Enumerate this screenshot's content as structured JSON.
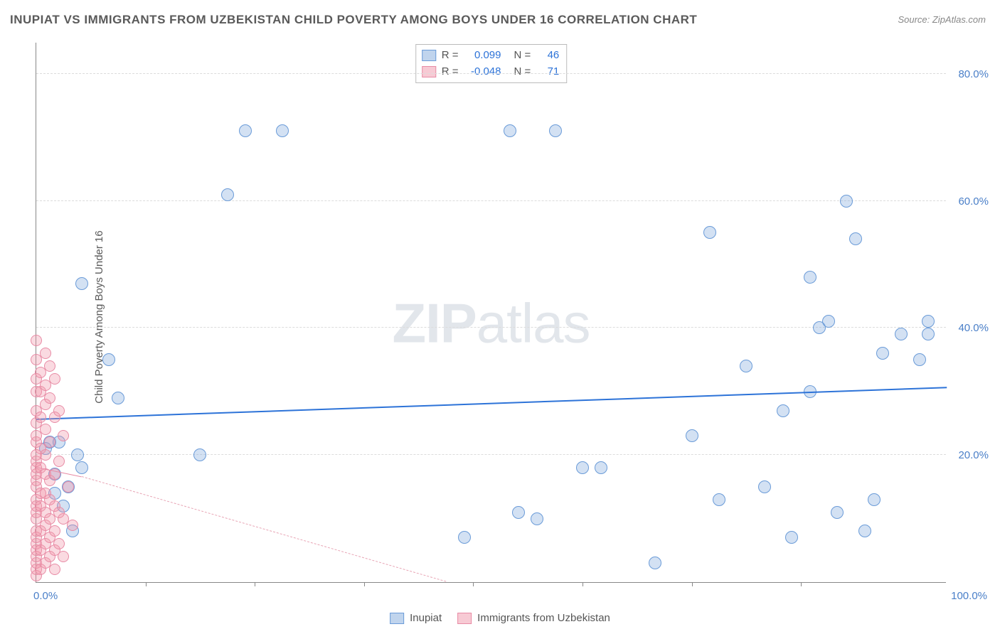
{
  "title": "INUPIAT VS IMMIGRANTS FROM UZBEKISTAN CHILD POVERTY AMONG BOYS UNDER 16 CORRELATION CHART",
  "source_prefix": "Source: ",
  "source_name": "ZipAtlas.com",
  "ylabel": "Child Poverty Among Boys Under 16",
  "watermark_bold": "ZIP",
  "watermark_light": "atlas",
  "chart": {
    "type": "scatter",
    "xlim": [
      0,
      100
    ],
    "ylim": [
      0,
      85
    ],
    "x_ticks": [
      0,
      12,
      24,
      36,
      48,
      60,
      72,
      84,
      100
    ],
    "x_visible_tick_labels": {
      "0": "0.0%",
      "100": "100.0%"
    },
    "y_gridlines": [
      20,
      40,
      60,
      80
    ],
    "y_tick_labels": {
      "20": "20.0%",
      "40": "40.0%",
      "60": "60.0%",
      "80": "80.0%"
    },
    "background_color": "#ffffff",
    "grid_color": "#dcdcdc",
    "axis_color": "#888888",
    "tick_label_color": "#4a7fc8",
    "title_color": "#5a5a5a",
    "title_fontsize": 17,
    "label_fontsize": 15,
    "series": [
      {
        "name": "Inupiat",
        "marker_color_fill": "rgba(130,170,220,0.35)",
        "marker_color_stroke": "#6a9bd8",
        "marker_radius": 9,
        "trend_color": "#2d73d8",
        "trend_width": 2.5,
        "trend_style": "solid",
        "R": "0.099",
        "N": "46",
        "trend": {
          "x1": 0,
          "y1": 25.5,
          "x2": 100,
          "y2": 30.5
        },
        "points": [
          [
            1,
            21
          ],
          [
            1.5,
            22
          ],
          [
            2,
            14
          ],
          [
            2,
            17
          ],
          [
            2.5,
            22
          ],
          [
            3,
            12
          ],
          [
            3.5,
            15
          ],
          [
            4,
            8
          ],
          [
            4.5,
            20
          ],
          [
            5,
            18
          ],
          [
            5,
            47
          ],
          [
            8,
            35
          ],
          [
            9,
            29
          ],
          [
            18,
            20
          ],
          [
            21,
            61
          ],
          [
            23,
            71
          ],
          [
            27,
            71
          ],
          [
            47,
            7
          ],
          [
            52,
            71
          ],
          [
            53,
            11
          ],
          [
            55,
            10
          ],
          [
            57,
            71
          ],
          [
            60,
            18
          ],
          [
            62,
            18
          ],
          [
            68,
            3
          ],
          [
            72,
            23
          ],
          [
            74,
            55
          ],
          [
            75,
            13
          ],
          [
            78,
            34
          ],
          [
            80,
            15
          ],
          [
            82,
            27
          ],
          [
            83,
            7
          ],
          [
            85,
            30
          ],
          [
            85,
            48
          ],
          [
            86,
            40
          ],
          [
            87,
            41
          ],
          [
            88,
            11
          ],
          [
            89,
            60
          ],
          [
            90,
            54
          ],
          [
            91,
            8
          ],
          [
            92,
            13
          ],
          [
            93,
            36
          ],
          [
            95,
            39
          ],
          [
            97,
            35
          ],
          [
            98,
            41
          ],
          [
            98,
            39
          ]
        ]
      },
      {
        "name": "Immigrants from Uzbekistan",
        "marker_color_fill": "rgba(240,150,170,0.35)",
        "marker_color_stroke": "#e88ba5",
        "marker_radius": 8,
        "trend_color": "#e88ba5",
        "trend_width": 1,
        "trend_style": "solid",
        "trend_dash_color": "#e8a5b5",
        "R": "-0.048",
        "N": "71",
        "trend": {
          "x1": 0,
          "y1": 18,
          "x2": 5,
          "y2": 16.5
        },
        "trend_dash": {
          "x1": 5,
          "y1": 16.5,
          "x2": 45,
          "y2": 0
        },
        "points": [
          [
            0,
            1
          ],
          [
            0,
            2
          ],
          [
            0,
            3
          ],
          [
            0,
            4
          ],
          [
            0,
            5
          ],
          [
            0,
            6
          ],
          [
            0,
            7
          ],
          [
            0,
            8
          ],
          [
            0,
            10
          ],
          [
            0,
            11
          ],
          [
            0,
            12
          ],
          [
            0,
            13
          ],
          [
            0,
            15
          ],
          [
            0,
            16
          ],
          [
            0,
            17
          ],
          [
            0,
            18
          ],
          [
            0,
            19
          ],
          [
            0,
            20
          ],
          [
            0,
            22
          ],
          [
            0,
            23
          ],
          [
            0,
            25
          ],
          [
            0,
            27
          ],
          [
            0,
            30
          ],
          [
            0,
            32
          ],
          [
            0,
            35
          ],
          [
            0,
            38
          ],
          [
            0.5,
            2
          ],
          [
            0.5,
            5
          ],
          [
            0.5,
            8
          ],
          [
            0.5,
            12
          ],
          [
            0.5,
            14
          ],
          [
            0.5,
            18
          ],
          [
            0.5,
            21
          ],
          [
            0.5,
            26
          ],
          [
            0.5,
            30
          ],
          [
            0.5,
            33
          ],
          [
            1,
            3
          ],
          [
            1,
            6
          ],
          [
            1,
            9
          ],
          [
            1,
            11
          ],
          [
            1,
            14
          ],
          [
            1,
            17
          ],
          [
            1,
            20
          ],
          [
            1,
            24
          ],
          [
            1,
            28
          ],
          [
            1,
            31
          ],
          [
            1,
            36
          ],
          [
            1.5,
            4
          ],
          [
            1.5,
            7
          ],
          [
            1.5,
            10
          ],
          [
            1.5,
            13
          ],
          [
            1.5,
            16
          ],
          [
            1.5,
            22
          ],
          [
            1.5,
            29
          ],
          [
            1.5,
            34
          ],
          [
            2,
            2
          ],
          [
            2,
            5
          ],
          [
            2,
            8
          ],
          [
            2,
            12
          ],
          [
            2,
            17
          ],
          [
            2,
            26
          ],
          [
            2,
            32
          ],
          [
            2.5,
            6
          ],
          [
            2.5,
            11
          ],
          [
            2.5,
            19
          ],
          [
            2.5,
            27
          ],
          [
            3,
            4
          ],
          [
            3,
            10
          ],
          [
            3,
            23
          ],
          [
            3.5,
            15
          ],
          [
            4,
            9
          ]
        ]
      }
    ]
  },
  "legend": {
    "rows": [
      {
        "swatch": "blue",
        "R_label": "R =",
        "R_val": "0.099",
        "N_label": "N =",
        "N_val": "46"
      },
      {
        "swatch": "pink",
        "R_label": "R =",
        "R_val": "-0.048",
        "N_label": "N =",
        "N_val": "71"
      }
    ]
  },
  "bottom_legend": {
    "items": [
      {
        "swatch": "blue",
        "label": "Inupiat"
      },
      {
        "swatch": "pink",
        "label": "Immigrants from Uzbekistan"
      }
    ]
  }
}
